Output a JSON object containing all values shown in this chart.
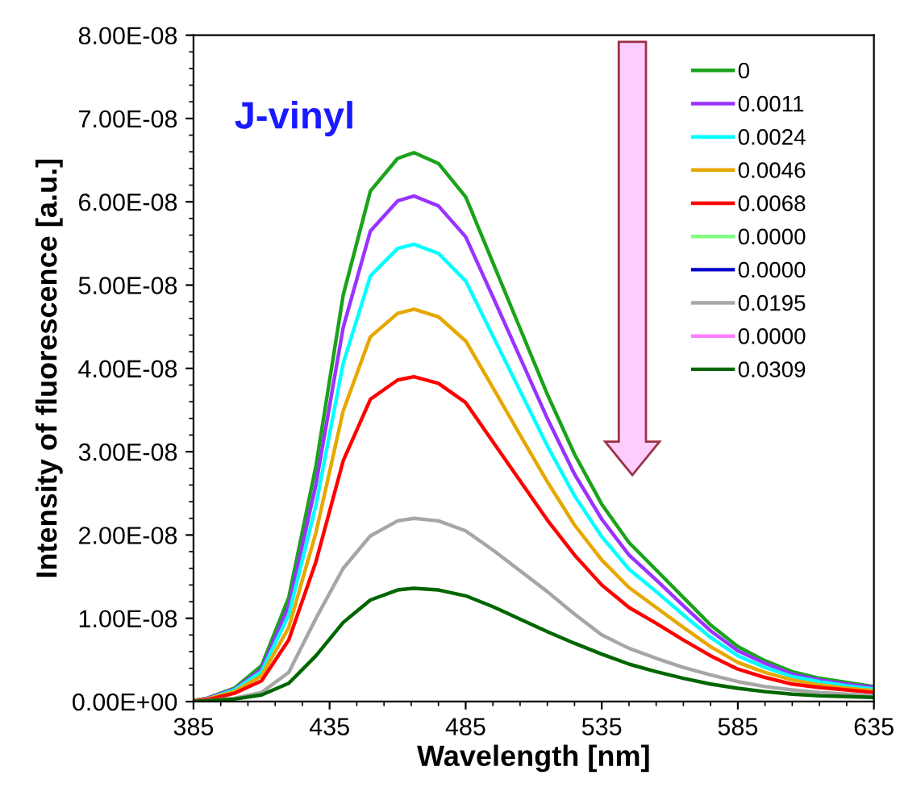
{
  "chart_data": {
    "type": "line",
    "xlabel": "Wavelength [nm]",
    "ylabel": "Intensity of fluorescence [a.u.]",
    "annotations": [
      "J-vinyl"
    ],
    "x": [
      385,
      390,
      400,
      410,
      420,
      430,
      440,
      450,
      460,
      466,
      475,
      485,
      495,
      505,
      515,
      525,
      535,
      545,
      555,
      565,
      575,
      585,
      595,
      605,
      615,
      625,
      635
    ],
    "series": [
      {
        "name": "0",
        "color": "#1aa31a",
        "values": [
          1e-10,
          4e-10,
          1.6e-09,
          4.3e-09,
          1.25e-08,
          2.83e-08,
          4.88e-08,
          6.13e-08,
          6.52e-08,
          6.59e-08,
          6.46e-08,
          6.06e-08,
          5.27e-08,
          4.48e-08,
          3.69e-08,
          2.97e-08,
          2.37e-08,
          1.91e-08,
          1.58e-08,
          1.25e-08,
          9.2e-09,
          6.6e-09,
          4.9e-09,
          3.6e-09,
          2.8e-09,
          2.3e-09,
          1.8e-09
        ]
      },
      {
        "name": "0.0011",
        "color": "#9933ff",
        "values": [
          1e-10,
          4e-10,
          1.5e-09,
          3.9e-09,
          1.15e-08,
          2.61e-08,
          4.49e-08,
          5.65e-08,
          6.01e-08,
          6.07e-08,
          5.95e-08,
          5.58e-08,
          4.86e-08,
          4.13e-08,
          3.4e-08,
          2.73e-08,
          2.19e-08,
          1.76e-08,
          1.46e-08,
          1.15e-08,
          8.5e-09,
          6.1e-09,
          4.6e-09,
          3.3e-09,
          2.6e-09,
          2.1e-09,
          1.7e-09
        ]
      },
      {
        "name": "0.0024",
        "color": "#00ffff",
        "values": [
          1e-10,
          3e-10,
          1.4e-09,
          3.6e-09,
          1.04e-08,
          2.36e-08,
          4.06e-08,
          5.11e-08,
          5.44e-08,
          5.49e-08,
          5.38e-08,
          5.05e-08,
          4.39e-08,
          3.73e-08,
          3.07e-08,
          2.47e-08,
          1.98e-08,
          1.59e-08,
          1.32e-08,
          1.04e-08,
          7.7e-09,
          5.5e-09,
          4.1e-09,
          3e-09,
          2.4e-09,
          1.9e-09,
          1.5e-09
        ]
      },
      {
        "name": "0.0046",
        "color": "#e6a800",
        "values": [
          1e-10,
          3e-10,
          1.2e-09,
          3.1e-09,
          8.9e-09,
          2.03e-08,
          3.49e-08,
          4.38e-08,
          4.66e-08,
          4.71e-08,
          4.62e-08,
          4.33e-08,
          3.77e-08,
          3.2e-08,
          2.64e-08,
          2.12e-08,
          1.7e-08,
          1.37e-08,
          1.13e-08,
          8.9e-09,
          6.6e-09,
          4.7e-09,
          3.5e-09,
          2.6e-09,
          2e-09,
          1.6e-09,
          1.3e-09
        ]
      },
      {
        "name": "0.0068",
        "color": "#ff0000",
        "values": [
          1e-10,
          2e-10,
          1e-09,
          2.5e-09,
          7.4e-09,
          1.68e-08,
          2.89e-08,
          3.63e-08,
          3.86e-08,
          3.9e-08,
          3.82e-08,
          3.59e-08,
          3.12e-08,
          2.65e-08,
          2.18e-08,
          1.76e-08,
          1.4e-08,
          1.13e-08,
          9.4e-09,
          7.4e-09,
          5.5e-09,
          3.9e-09,
          2.9e-09,
          2.1e-09,
          1.7e-09,
          1.4e-09,
          1.1e-09
        ]
      },
      {
        "name": "0.0000",
        "color": "#80ff80",
        "values": [
          null,
          null,
          null,
          null,
          null,
          null,
          null,
          null,
          null,
          null,
          null,
          null,
          null,
          null,
          null,
          null,
          null,
          null,
          null,
          null,
          null,
          null,
          null,
          null,
          null,
          null,
          null
        ]
      },
      {
        "name": "0.0000",
        "color": "#0000cc",
        "values": [
          null,
          null,
          null,
          null,
          null,
          null,
          null,
          null,
          null,
          null,
          null,
          null,
          null,
          null,
          null,
          null,
          null,
          null,
          null,
          null,
          null,
          null,
          null,
          null,
          null,
          null,
          null
        ]
      },
      {
        "name": "0.0195",
        "color": "#a6a6a6",
        "values": [
          0,
          1e-10,
          4e-10,
          1.1e-09,
          3.5e-09,
          1e-08,
          1.6e-08,
          1.99e-08,
          2.17e-08,
          2.2e-08,
          2.17e-08,
          2.05e-08,
          1.82e-08,
          1.57e-08,
          1.32e-08,
          1.05e-08,
          8e-09,
          6.4e-09,
          5.2e-09,
          4.1e-09,
          3.2e-09,
          2.4e-09,
          1.8e-09,
          1.4e-09,
          1.1e-09,
          9e-10,
          7e-10
        ]
      },
      {
        "name": "0.0000",
        "color": "#ff80ff",
        "values": [
          null,
          null,
          null,
          null,
          null,
          null,
          null,
          null,
          null,
          null,
          null,
          null,
          null,
          null,
          null,
          null,
          null,
          null,
          null,
          null,
          null,
          null,
          null,
          null,
          null,
          null,
          null
        ]
      },
      {
        "name": "0.0309",
        "color": "#006600",
        "values": [
          0,
          1e-10,
          3e-10,
          8e-10,
          2.2e-09,
          5.5e-09,
          9.5e-09,
          1.22e-08,
          1.34e-08,
          1.36e-08,
          1.34e-08,
          1.27e-08,
          1.14e-08,
          9.9e-09,
          8.4e-09,
          7e-09,
          5.7e-09,
          4.5e-09,
          3.6e-09,
          2.8e-09,
          2.1e-09,
          1.6e-09,
          1.2e-09,
          9e-10,
          7e-10,
          6e-10,
          5e-10
        ]
      }
    ],
    "xlim": [
      385,
      635
    ],
    "xticks": [
      385,
      435,
      485,
      535,
      585,
      635
    ],
    "ylim": [
      0,
      8e-08
    ],
    "yticks": [
      {
        "value": 0,
        "label": "0.00E+00"
      },
      {
        "value": 1e-08,
        "label": "1.00E-08"
      },
      {
        "value": 2e-08,
        "label": "2.00E-08"
      },
      {
        "value": 3e-08,
        "label": "3.00E-08"
      },
      {
        "value": 4e-08,
        "label": "4.00E-08"
      },
      {
        "value": 5e-08,
        "label": "5.00E-08"
      },
      {
        "value": 6e-08,
        "label": "6.00E-08"
      },
      {
        "value": 7e-08,
        "label": "7.00E-08"
      },
      {
        "value": 8e-08,
        "label": "8.00E-08"
      }
    ],
    "grid": false,
    "legend": "top right",
    "marker": "none",
    "line_style": "solid"
  }
}
